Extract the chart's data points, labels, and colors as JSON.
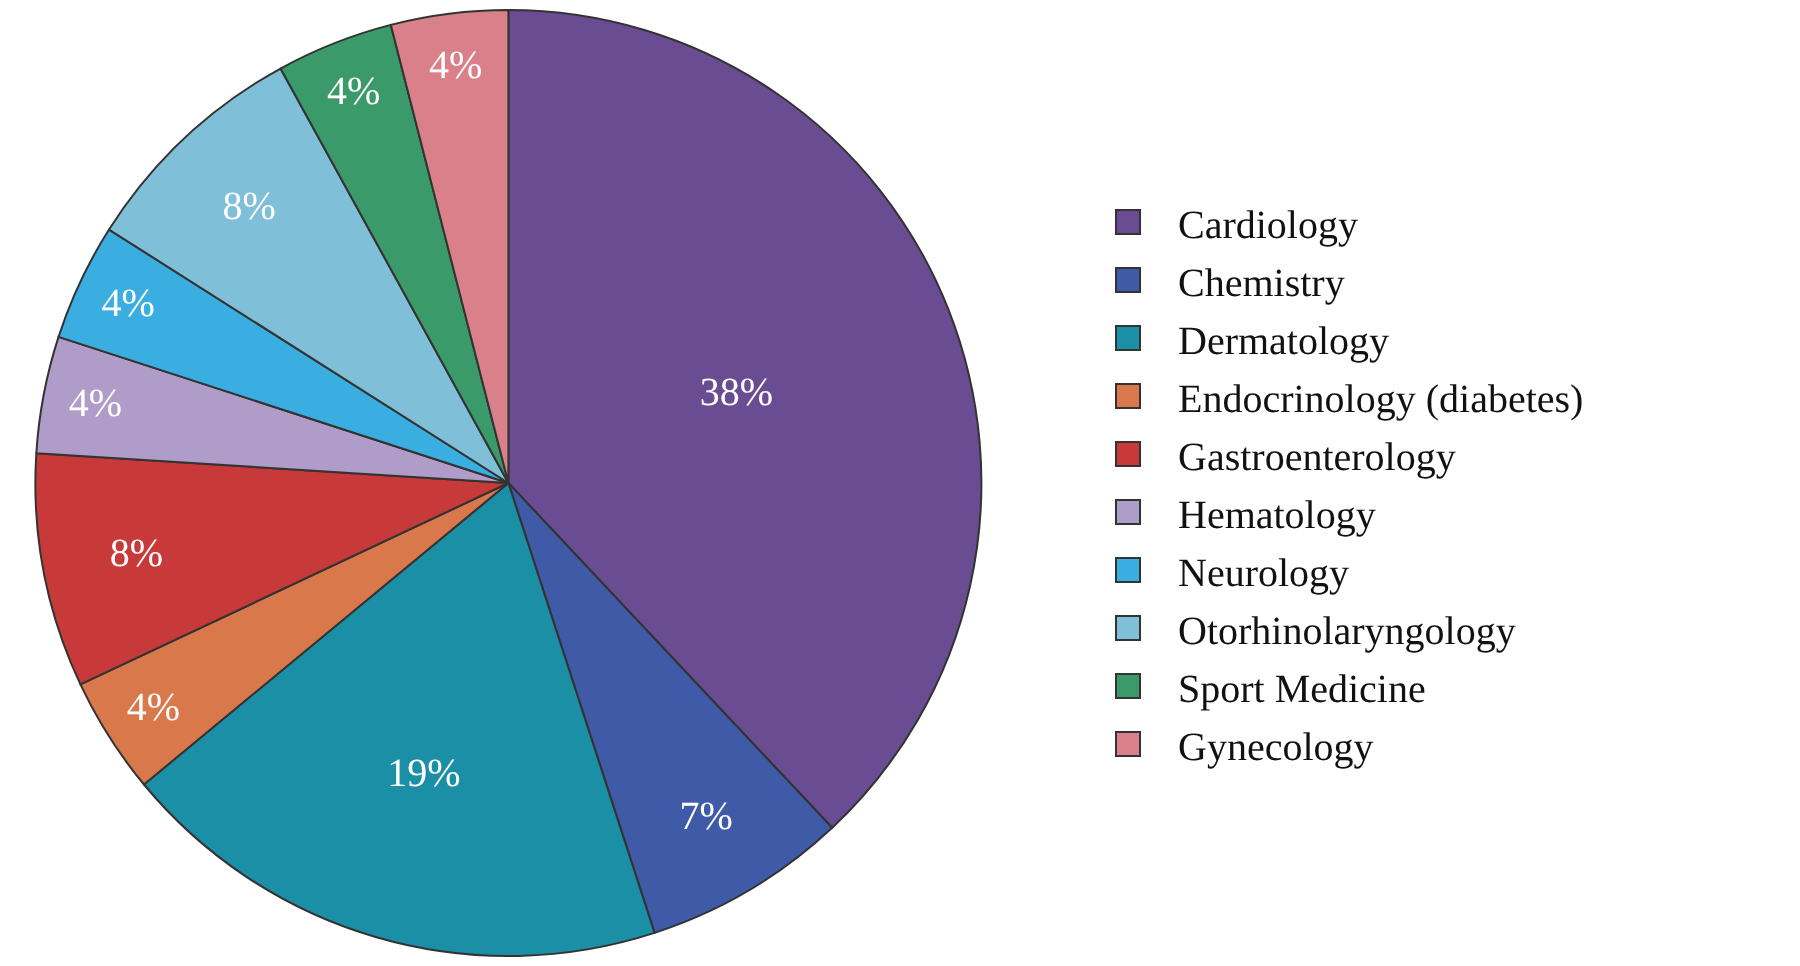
{
  "chart_data": {
    "type": "pie",
    "categories": [
      "Cardiology",
      "Chemistry",
      "Dermatology",
      "Endocrinology (diabetes)",
      "Gastroenterology",
      "Hematology",
      "Neurology",
      "Otorhinolaryngology",
      "Sport Medicine",
      "Gynecology"
    ],
    "values": [
      38,
      7,
      19,
      4,
      8,
      4,
      4,
      8,
      4,
      4
    ],
    "colors": [
      "#6a4c93",
      "#3f5aa6",
      "#1a8fa6",
      "#d9784a",
      "#c83a3a",
      "#b09cc8",
      "#3aaee0",
      "#7fbfd8",
      "#3a9a6a",
      "#d9808a"
    ],
    "value_labels": [
      "38%",
      "7%",
      "19%",
      "4%",
      "8%",
      "4%",
      "4%",
      "8%",
      "4%",
      "4%"
    ],
    "legend": "right"
  }
}
